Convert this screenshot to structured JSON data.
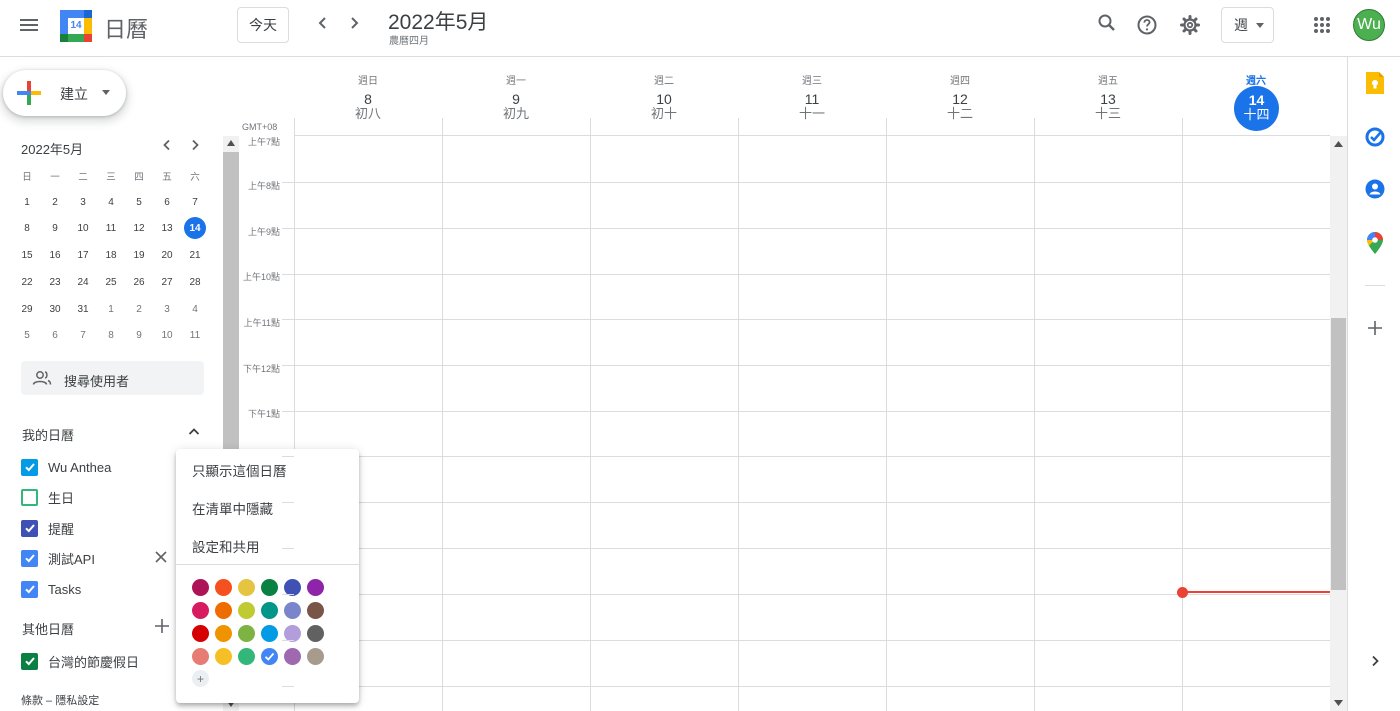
{
  "header": {
    "app_name": "日曆",
    "logo_day": "14",
    "today_label": "今天",
    "month_title": "2022年5月",
    "lunar_title": "農曆四月",
    "view_label": "週",
    "avatar_initials": "Wu"
  },
  "sidebar": {
    "create_label": "建立",
    "mini_calendar": {
      "title": "2022年5月",
      "weekdays": [
        "日",
        "一",
        "二",
        "三",
        "四",
        "五",
        "六"
      ],
      "weeks": [
        [
          "1",
          "2",
          "3",
          "4",
          "5",
          "6",
          "7"
        ],
        [
          "8",
          "9",
          "10",
          "11",
          "12",
          "13",
          "14"
        ],
        [
          "15",
          "16",
          "17",
          "18",
          "19",
          "20",
          "21"
        ],
        [
          "22",
          "23",
          "24",
          "25",
          "26",
          "27",
          "28"
        ],
        [
          "29",
          "30",
          "31",
          "1",
          "2",
          "3",
          "4"
        ],
        [
          "5",
          "6",
          "7",
          "8",
          "9",
          "10",
          "11"
        ]
      ],
      "selected_day": "14"
    },
    "search_people_placeholder": "搜尋使用者",
    "my_calendars_title": "我的日曆",
    "my_calendars": [
      {
        "label": "Wu Anthea",
        "color": "#039be5",
        "checked": true
      },
      {
        "label": "生日",
        "color": "#33b679",
        "checked": false
      },
      {
        "label": "提醒",
        "color": "#3f51b5",
        "checked": true
      },
      {
        "label": "測試API",
        "color": "#4285f4",
        "checked": true
      },
      {
        "label": "Tasks",
        "color": "#4285f4",
        "checked": true
      }
    ],
    "other_calendars_title": "其他日曆",
    "other_calendars": [
      {
        "label": "台灣的節慶假日",
        "color": "#0b8043",
        "checked": true
      }
    ],
    "footer": "條款 – 隱私設定"
  },
  "week": {
    "timezone": "GMT+08",
    "days": [
      {
        "name": "週日",
        "num": "8",
        "lunar": "初八",
        "today": false
      },
      {
        "name": "週一",
        "num": "9",
        "lunar": "初九",
        "today": false
      },
      {
        "name": "週二",
        "num": "10",
        "lunar": "初十",
        "today": false
      },
      {
        "name": "週三",
        "num": "11",
        "lunar": "十一",
        "today": false
      },
      {
        "name": "週四",
        "num": "12",
        "lunar": "十二",
        "today": false
      },
      {
        "name": "週五",
        "num": "13",
        "lunar": "十三",
        "today": false
      },
      {
        "name": "週六",
        "num": "14",
        "lunar": "十四",
        "today": true
      }
    ],
    "time_labels": [
      "上午7點",
      "上午8點",
      "上午9點",
      "上午10點",
      "上午11點",
      "下午12點",
      "下午1點"
    ]
  },
  "popup": {
    "items": [
      "只顯示這個日曆",
      "在清單中隱藏",
      "設定和共用"
    ],
    "colors": [
      [
        "#ad1457",
        "#f4511e",
        "#e4c441",
        "#0b8043",
        "#3f51b5",
        "#8e24aa"
      ],
      [
        "#d81b60",
        "#ef6c00",
        "#c0ca33",
        "#009688",
        "#7986cb",
        "#795548"
      ],
      [
        "#d50000",
        "#f09300",
        "#7cb342",
        "#039be5",
        "#b39ddb",
        "#616161"
      ],
      [
        "#e67c73",
        "#f6bf26",
        "#33b679",
        "#4285f4",
        "#9e69af",
        "#a79b8e"
      ]
    ],
    "selected_color": "#4285f4",
    "add_label": "+"
  },
  "side_panel": {
    "icons": [
      "keep-icon",
      "tasks-icon",
      "contacts-icon",
      "maps-icon"
    ],
    "add_label": "+"
  }
}
